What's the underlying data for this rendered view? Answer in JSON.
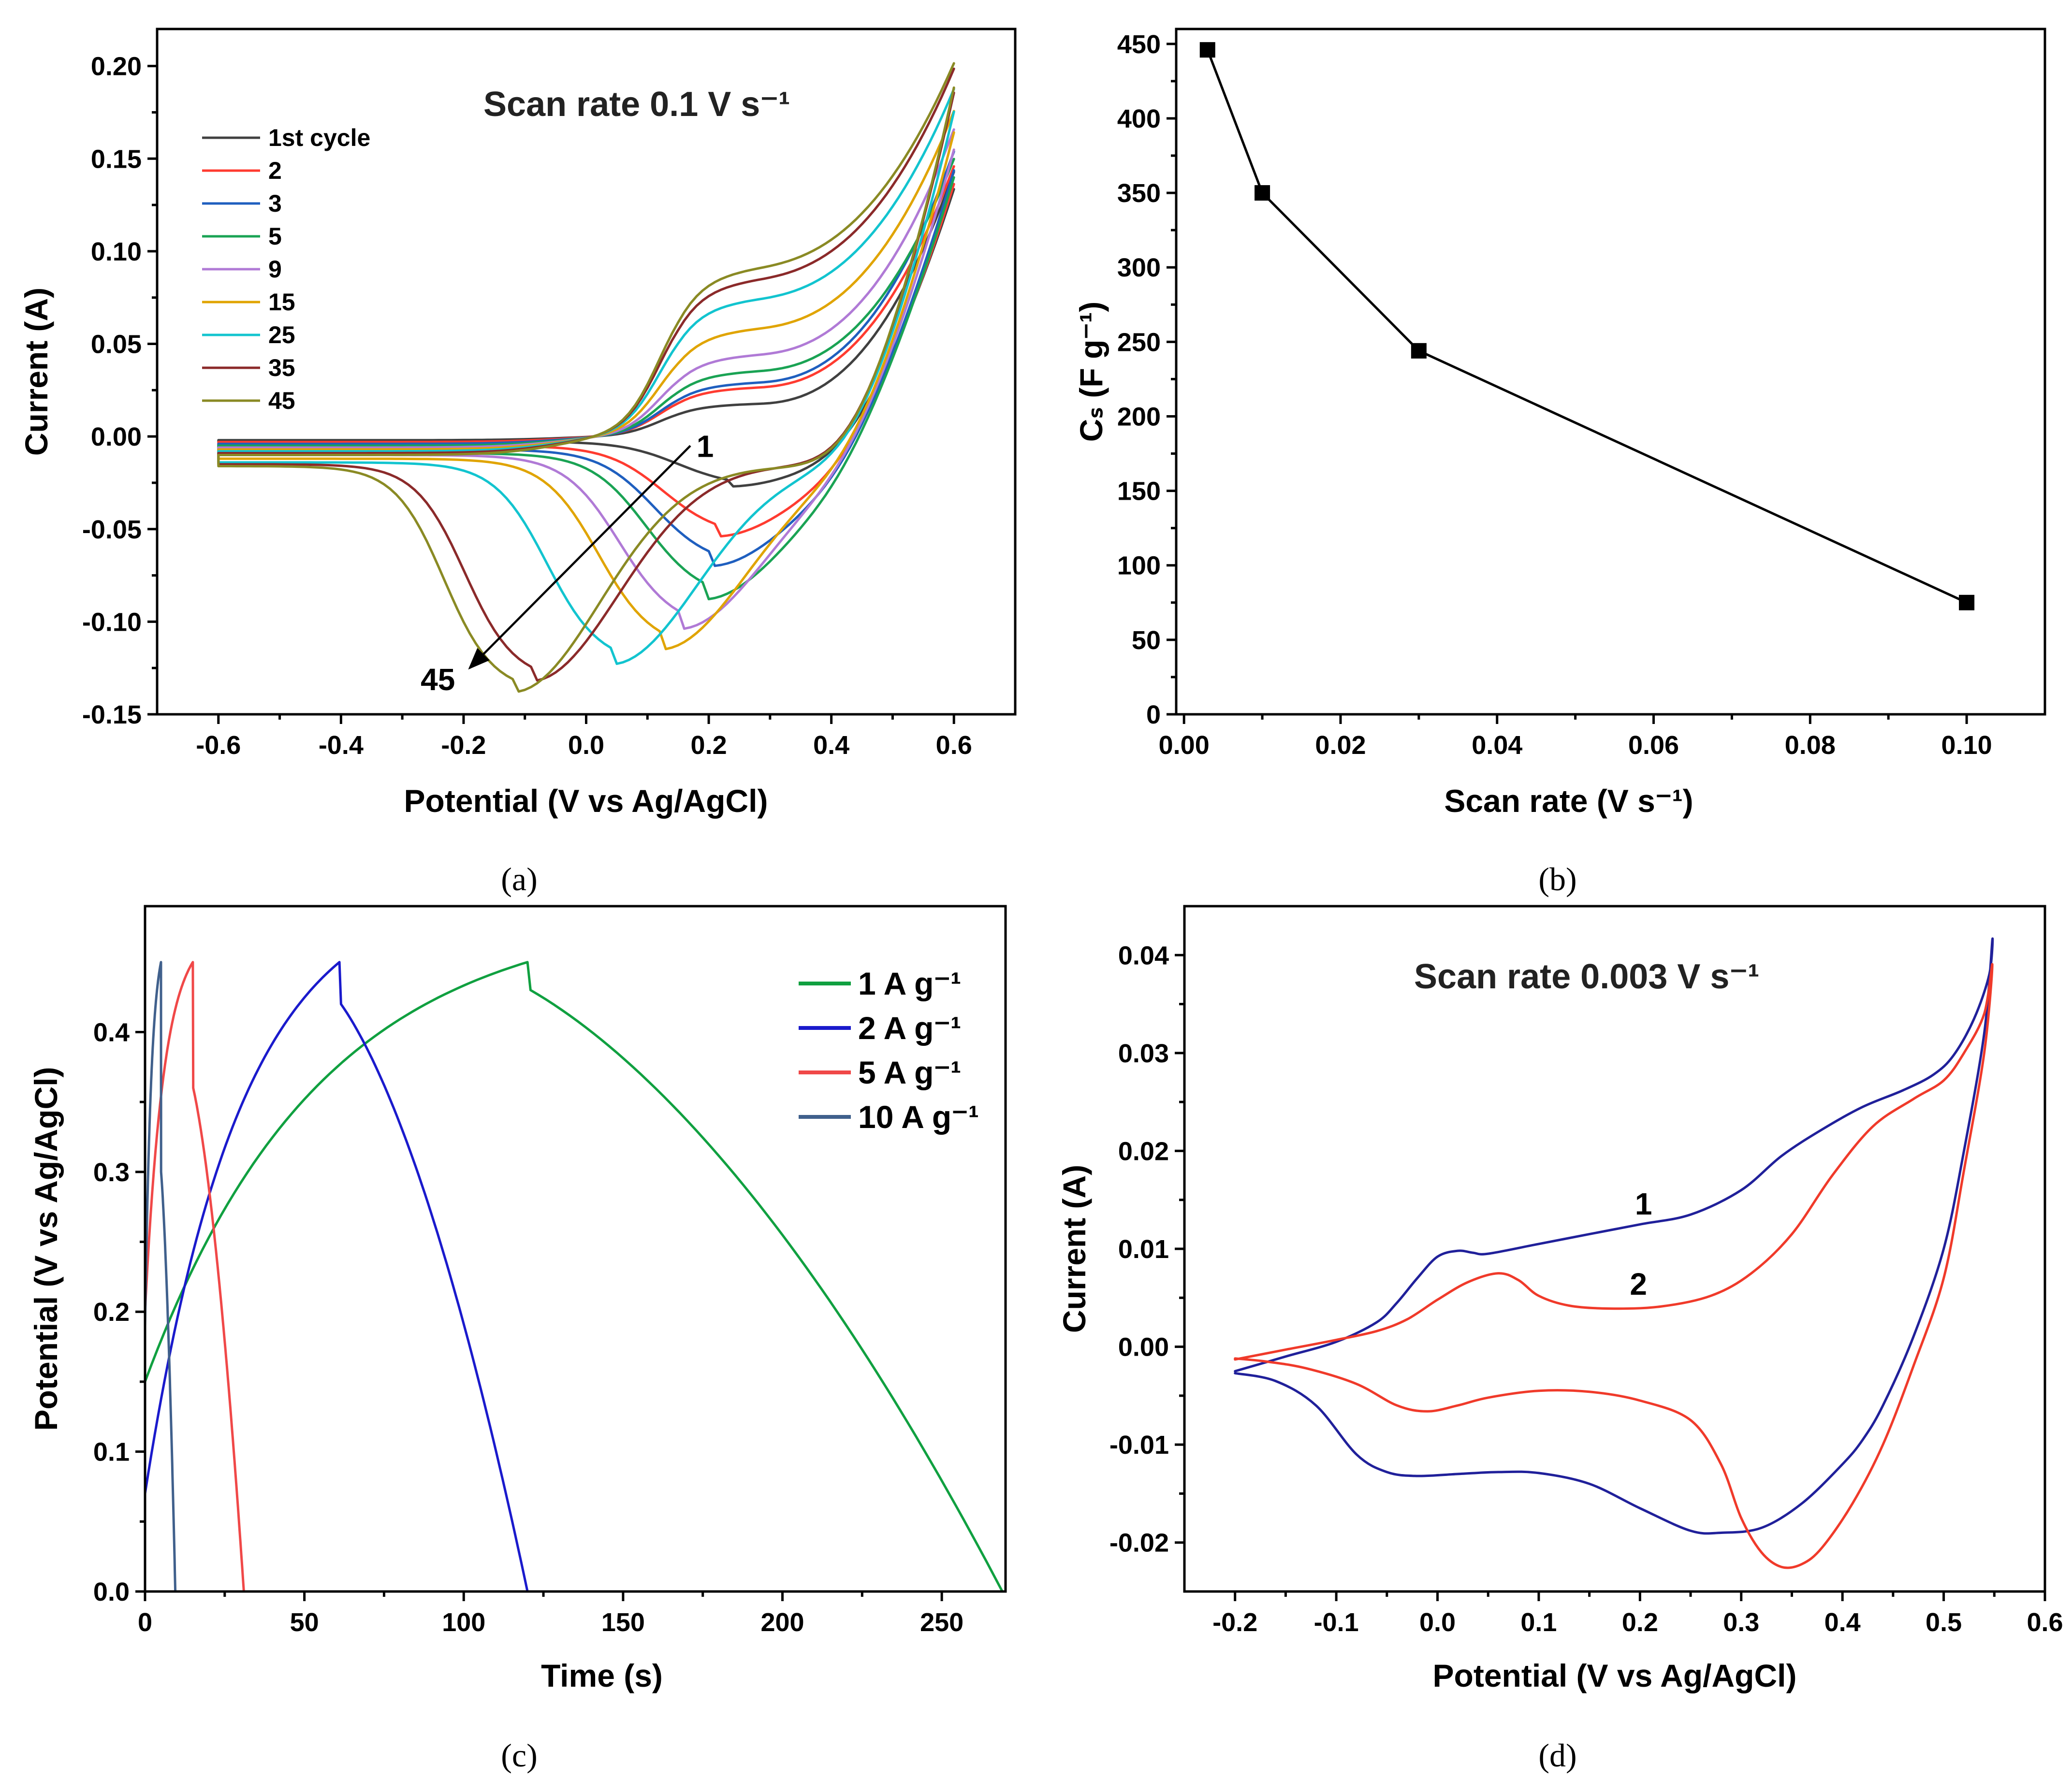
{
  "captions": [
    "(a)",
    "(b)",
    "(c)",
    "(d)"
  ],
  "chart_data": [
    {
      "id": "a",
      "type": "line",
      "title": "Scan rate 0.1 V s⁻¹",
      "xlabel": "Potential (V vs Ag/AgCl)",
      "ylabel": "Current (A)",
      "xlim": [
        -0.7,
        0.7
      ],
      "ylim": [
        -0.15,
        0.22
      ],
      "xticks": [
        -0.6,
        -0.4,
        -0.2,
        0.0,
        0.2,
        0.4,
        0.6
      ],
      "xtick_labels": [
        "-0.6",
        "-0.4",
        "-0.2",
        "0.0",
        "0.2",
        "0.4",
        "0.6"
      ],
      "yticks": [
        -0.15,
        -0.1,
        -0.05,
        0.0,
        0.05,
        0.1,
        0.15,
        0.2
      ],
      "ytick_labels": [
        "-0.15",
        "-0.10",
        "-0.05",
        "0.00",
        "0.05",
        "0.10",
        "0.15",
        "0.20"
      ],
      "legend_position": "top-left",
      "annotations": [
        {
          "text": "1",
          "x": 0.18,
          "y": -0.011
        },
        {
          "text": "45",
          "x": -0.27,
          "y": -0.137
        }
      ],
      "arrow": {
        "from": [
          0.17,
          -0.005
        ],
        "to": [
          -0.19,
          -0.125
        ]
      },
      "series": [
        {
          "name": "1st cycle",
          "color": "#404040",
          "cath_lo": -0.0027,
          "peak_y": -0.027,
          "peak_x": 0.23,
          "rise_x": 0.34,
          "hump": 0.02,
          "vmax": 0.143,
          "anod_lo": -0.002
        },
        {
          "name": "2",
          "color": "#ff3b30",
          "cath_lo": -0.005,
          "peak_y": -0.054,
          "peak_x": 0.21,
          "rise_x": 0.3,
          "hump": 0.03,
          "vmax": 0.146,
          "anod_lo": -0.003
        },
        {
          "name": "3",
          "color": "#1f5fbf",
          "cath_lo": -0.007,
          "peak_y": -0.07,
          "peak_x": 0.2,
          "rise_x": 0.29,
          "hump": 0.033,
          "vmax": 0.154,
          "anod_lo": -0.004
        },
        {
          "name": "5",
          "color": "#1aa354",
          "cath_lo": -0.009,
          "peak_y": -0.088,
          "peak_x": 0.19,
          "rise_x": 0.27,
          "hump": 0.04,
          "vmax": 0.15,
          "anod_lo": -0.005
        },
        {
          "name": "9",
          "color": "#b07ad6",
          "cath_lo": -0.01,
          "peak_y": -0.104,
          "peak_x": 0.15,
          "rise_x": 0.25,
          "hump": 0.05,
          "vmax": 0.166,
          "anod_lo": -0.006
        },
        {
          "name": "15",
          "color": "#e0a400",
          "cath_lo": -0.012,
          "peak_y": -0.115,
          "peak_x": 0.12,
          "rise_x": 0.24,
          "hump": 0.066,
          "vmax": 0.176,
          "anod_lo": -0.007
        },
        {
          "name": "25",
          "color": "#12c4cf",
          "cath_lo": -0.014,
          "peak_y": -0.123,
          "peak_x": 0.04,
          "rise_x": 0.22,
          "hump": 0.084,
          "vmax": 0.188,
          "anod_lo": -0.008
        },
        {
          "name": "35",
          "color": "#8b2a2a",
          "cath_lo": -0.015,
          "peak_y": -0.132,
          "peak_x": -0.09,
          "rise_x": 0.2,
          "hump": 0.096,
          "vmax": 0.199,
          "anod_lo": -0.009
        },
        {
          "name": "45",
          "color": "#8a8a24",
          "cath_lo": -0.016,
          "peak_y": -0.138,
          "peak_x": -0.12,
          "rise_x": 0.19,
          "hump": 0.103,
          "vmax": 0.202,
          "anod_lo": -0.01
        }
      ]
    },
    {
      "id": "b",
      "type": "line",
      "xlabel": "Scan rate (V s⁻¹)",
      "ylabel": "Cₛ (F g⁻¹)",
      "xlim": [
        -0.001,
        0.11
      ],
      "ylim": [
        0,
        460
      ],
      "xticks": [
        0.0,
        0.02,
        0.04,
        0.06,
        0.08,
        0.1
      ],
      "xtick_labels": [
        "0.00",
        "0.02",
        "0.04",
        "0.06",
        "0.08",
        "0.10"
      ],
      "yticks": [
        0,
        50,
        100,
        150,
        200,
        250,
        300,
        350,
        400,
        450
      ],
      "ytick_labels": [
        "0",
        "50",
        "100",
        "150",
        "200",
        "250",
        "300",
        "350",
        "400",
        "450"
      ],
      "x": [
        0.003,
        0.01,
        0.03,
        0.1
      ],
      "y": [
        446,
        350,
        244,
        75
      ],
      "color": "#000000"
    },
    {
      "id": "c",
      "type": "line",
      "xlabel": "Time (s)",
      "ylabel": "Potential (V vs Ag/AgCl)",
      "xlim": [
        0,
        270
      ],
      "ylim": [
        0,
        0.49
      ],
      "xticks": [
        0,
        50,
        100,
        150,
        200,
        250
      ],
      "xtick_labels": [
        "0",
        "50",
        "100",
        "150",
        "200",
        "250"
      ],
      "yticks": [
        0.0,
        0.1,
        0.2,
        0.3,
        0.4
      ],
      "ytick_labels": [
        "0.0",
        "0.1",
        "0.2",
        "0.3",
        "0.4"
      ],
      "legend_position": "top-right",
      "series": [
        {
          "name": "1 A g⁻¹",
          "color": "#10a040",
          "v0": 0.15,
          "t_top": 120,
          "drop": 0.43,
          "t_end": 269,
          "tau": 55
        },
        {
          "name": "2 A g⁻¹",
          "color": "#1a1acc",
          "v0": 0.07,
          "t_top": 61,
          "drop": 0.42,
          "t_end": 120,
          "tau": 30
        },
        {
          "name": "5 A g⁻¹",
          "color": "#f04848",
          "v0": 0.2,
          "t_top": 15,
          "drop": 0.36,
          "t_end": 31,
          "tau": 6
        },
        {
          "name": "10 A g⁻¹",
          "color": "#40608c",
          "v0": 0.19,
          "t_top": 5,
          "drop": 0.3,
          "t_end": 9.5,
          "tau": 2
        }
      ]
    },
    {
      "id": "d",
      "type": "line",
      "title": "Scan rate 0.003 V s⁻¹",
      "xlabel": "Potential (V vs Ag/AgCl)",
      "ylabel": "Current (A)",
      "xlim": [
        -0.25,
        0.6
      ],
      "ylim": [
        -0.025,
        0.045
      ],
      "xticks": [
        -0.2,
        -0.1,
        0.0,
        0.1,
        0.2,
        0.3,
        0.4,
        0.5,
        0.6
      ],
      "xtick_labels": [
        "-0.2",
        "-0.1",
        "0.0",
        "0.1",
        "0.2",
        "0.3",
        "0.4",
        "0.5",
        "0.6"
      ],
      "yticks": [
        -0.02,
        -0.01,
        0.0,
        0.01,
        0.02,
        0.03,
        0.04
      ],
      "ytick_labels": [
        "-0.02",
        "-0.01",
        "0.00",
        "0.01",
        "0.02",
        "0.03",
        "0.04"
      ],
      "annotations": [
        {
          "text": "1",
          "x": 0.195,
          "y": 0.0135
        },
        {
          "text": "2",
          "x": 0.19,
          "y": 0.0053
        }
      ],
      "series": [
        {
          "name": "1",
          "color": "#20209a",
          "x": [
            -0.2,
            -0.15,
            -0.1,
            -0.06,
            -0.04,
            -0.02,
            0.0,
            0.02,
            0.035,
            0.05,
            0.1,
            0.15,
            0.2,
            0.25,
            0.3,
            0.34,
            0.38,
            0.42,
            0.46,
            0.49,
            0.51,
            0.53,
            0.545,
            0.548,
            0.54,
            0.52,
            0.5,
            0.47,
            0.44,
            0.42,
            0.4,
            0.36,
            0.32,
            0.28,
            0.25,
            0.2,
            0.15,
            0.1,
            0.06,
            0.02,
            -0.02,
            -0.05,
            -0.08,
            -0.12,
            -0.16,
            -0.2
          ],
          "y": [
            -0.0025,
            -0.001,
            0.0005,
            0.0025,
            0.0045,
            0.007,
            0.0092,
            0.0098,
            0.0096,
            0.0095,
            0.0105,
            0.0115,
            0.0125,
            0.0135,
            0.016,
            0.0195,
            0.0222,
            0.0245,
            0.0262,
            0.0278,
            0.0298,
            0.0335,
            0.038,
            0.0415,
            0.032,
            0.02,
            0.01,
            0.001,
            -0.006,
            -0.0095,
            -0.012,
            -0.016,
            -0.0185,
            -0.019,
            -0.0188,
            -0.0165,
            -0.014,
            -0.0129,
            -0.0128,
            -0.013,
            -0.0132,
            -0.0128,
            -0.011,
            -0.006,
            -0.0035,
            -0.0027
          ]
        },
        {
          "name": "2",
          "color": "#f03a2a",
          "x": [
            -0.2,
            -0.15,
            -0.1,
            -0.06,
            -0.03,
            0.0,
            0.03,
            0.06,
            0.08,
            0.1,
            0.13,
            0.17,
            0.22,
            0.27,
            0.31,
            0.35,
            0.39,
            0.43,
            0.47,
            0.5,
            0.52,
            0.54,
            0.548,
            0.54,
            0.52,
            0.5,
            0.47,
            0.44,
            0.41,
            0.38,
            0.36,
            0.34,
            0.32,
            0.3,
            0.28,
            0.25,
            0.2,
            0.15,
            0.1,
            0.05,
            0.02,
            -0.01,
            -0.04,
            -0.08,
            -0.13,
            -0.17,
            -0.2
          ],
          "y": [
            -0.0013,
            -0.0003,
            0.0007,
            0.0016,
            0.0028,
            0.0048,
            0.0066,
            0.0075,
            0.0068,
            0.0052,
            0.0042,
            0.0039,
            0.0041,
            0.0052,
            0.0075,
            0.0115,
            0.0175,
            0.0225,
            0.0253,
            0.0272,
            0.03,
            0.034,
            0.039,
            0.03,
            0.018,
            0.007,
            -0.002,
            -0.01,
            -0.016,
            -0.0205,
            -0.0222,
            -0.0225,
            -0.021,
            -0.0175,
            -0.012,
            -0.0075,
            -0.0055,
            -0.0046,
            -0.0045,
            -0.0052,
            -0.006,
            -0.0066,
            -0.006,
            -0.0038,
            -0.0022,
            -0.0015,
            -0.0012
          ]
        }
      ]
    }
  ]
}
